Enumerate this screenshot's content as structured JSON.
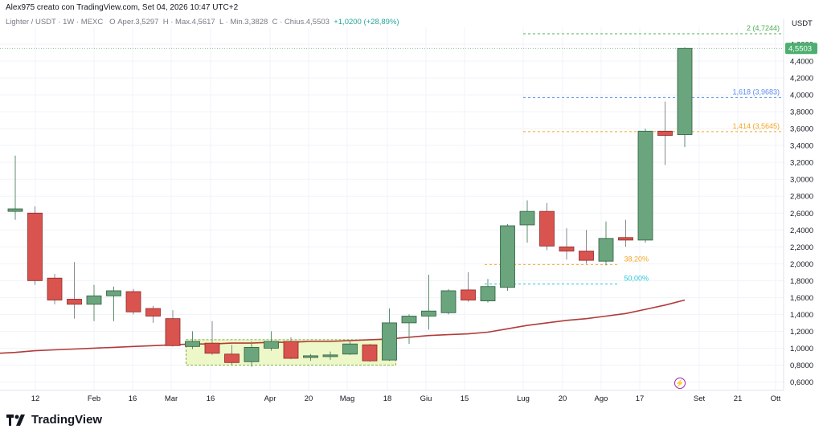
{
  "header": {
    "author_line": "Alex975 creato con TradingView.com, Set 04, 2026 10:47 UTC+2",
    "symbol": "Lighter / USDT · 1W · MEXC",
    "o_label": "O",
    "open": "Aper.3,5297",
    "high": "H · Max.4,5617",
    "low": "L · Min.3,3828",
    "close": "C · Chius.4,5503",
    "change": "+1,0200 (+28,89%)"
  },
  "axis_unit": "USDT",
  "footer": {
    "brand": "TradingView"
  },
  "colors": {
    "up": "#6aa57e",
    "down": "#d9534f",
    "ma": "#b23a3a",
    "fib_blue": "#5b8def",
    "fib_orange": "#f5a623",
    "fib_green": "#4caf50",
    "fib_teal": "#26c6da"
  },
  "chart_data": {
    "type": "candlestick",
    "ylim": [
      0.5,
      4.8
    ],
    "y_ticks": [
      "0,6000",
      "0,8000",
      "1,0000",
      "1,2000",
      "1,4000",
      "1,6000",
      "1,8000",
      "2,0000",
      "2,2000",
      "2,4000",
      "2,6000",
      "2,8000",
      "3,0000",
      "3,2000",
      "3,4000",
      "3,6000",
      "3,8000",
      "4,0000",
      "4,2000",
      "4,4000",
      "4,6000"
    ],
    "x_labels": [
      "12",
      "Feb",
      "16",
      "Mar",
      "16",
      "Apr",
      "20",
      "Mag",
      "18",
      "Giu",
      "15",
      "Lug",
      "20",
      "Ago",
      "17",
      "Set",
      "21",
      "Ott"
    ],
    "last_price": "4,5503",
    "candles": [
      {
        "o": 2.62,
        "h": 3.28,
        "l": 2.52,
        "c": 2.65
      },
      {
        "o": 2.6,
        "h": 2.68,
        "l": 1.75,
        "c": 1.8
      },
      {
        "o": 1.83,
        "h": 1.88,
        "l": 1.52,
        "c": 1.57
      },
      {
        "o": 1.58,
        "h": 2.02,
        "l": 1.35,
        "c": 1.52
      },
      {
        "o": 1.52,
        "h": 1.75,
        "l": 1.32,
        "c": 1.62
      },
      {
        "o": 1.62,
        "h": 1.73,
        "l": 1.32,
        "c": 1.68
      },
      {
        "o": 1.67,
        "h": 1.7,
        "l": 1.4,
        "c": 1.43
      },
      {
        "o": 1.47,
        "h": 1.5,
        "l": 1.3,
        "c": 1.38
      },
      {
        "o": 1.35,
        "h": 1.45,
        "l": 1.02,
        "c": 1.03
      },
      {
        "o": 1.02,
        "h": 1.2,
        "l": 0.99,
        "c": 1.08
      },
      {
        "o": 1.06,
        "h": 1.32,
        "l": 0.92,
        "c": 0.94
      },
      {
        "o": 0.93,
        "h": 1.04,
        "l": 0.8,
        "c": 0.83
      },
      {
        "o": 0.84,
        "h": 1.08,
        "l": 0.78,
        "c": 1.01
      },
      {
        "o": 1.0,
        "h": 1.2,
        "l": 0.97,
        "c": 1.08
      },
      {
        "o": 1.08,
        "h": 1.13,
        "l": 0.87,
        "c": 0.88
      },
      {
        "o": 0.89,
        "h": 0.93,
        "l": 0.85,
        "c": 0.91
      },
      {
        "o": 0.9,
        "h": 0.96,
        "l": 0.86,
        "c": 0.92
      },
      {
        "o": 0.93,
        "h": 1.08,
        "l": 0.92,
        "c": 1.05
      },
      {
        "o": 1.04,
        "h": 1.05,
        "l": 0.84,
        "c": 0.85
      },
      {
        "o": 0.86,
        "h": 1.47,
        "l": 0.85,
        "c": 1.3
      },
      {
        "o": 1.3,
        "h": 1.4,
        "l": 1.05,
        "c": 1.38
      },
      {
        "o": 1.38,
        "h": 1.87,
        "l": 1.22,
        "c": 1.44
      },
      {
        "o": 1.42,
        "h": 1.7,
        "l": 1.4,
        "c": 1.68
      },
      {
        "o": 1.69,
        "h": 1.9,
        "l": 1.55,
        "c": 1.57
      },
      {
        "o": 1.56,
        "h": 1.82,
        "l": 1.54,
        "c": 1.73
      },
      {
        "o": 1.72,
        "h": 2.47,
        "l": 1.68,
        "c": 2.45
      },
      {
        "o": 2.46,
        "h": 2.75,
        "l": 2.25,
        "c": 2.62
      },
      {
        "o": 2.62,
        "h": 2.72,
        "l": 2.16,
        "c": 2.21
      },
      {
        "o": 2.2,
        "h": 2.42,
        "l": 2.05,
        "c": 2.15
      },
      {
        "o": 2.15,
        "h": 2.4,
        "l": 2.0,
        "c": 2.04
      },
      {
        "o": 2.03,
        "h": 2.5,
        "l": 1.98,
        "c": 2.3
      },
      {
        "o": 2.31,
        "h": 2.52,
        "l": 2.2,
        "c": 2.28
      },
      {
        "o": 2.28,
        "h": 3.6,
        "l": 2.25,
        "c": 3.57
      },
      {
        "o": 3.57,
        "h": 3.92,
        "l": 3.17,
        "c": 3.52
      },
      {
        "o": 3.5297,
        "h": 4.5617,
        "l": 3.3828,
        "c": 4.5503
      }
    ],
    "moving_average": [
      0.95,
      0.97,
      0.98,
      0.99,
      1.0,
      1.01,
      1.02,
      1.03,
      1.04,
      1.05,
      1.05,
      1.06,
      1.06,
      1.07,
      1.07,
      1.08,
      1.08,
      1.09,
      1.1,
      1.11,
      1.13,
      1.15,
      1.16,
      1.17,
      1.19,
      1.23,
      1.27,
      1.3,
      1.33,
      1.35,
      1.38,
      1.41,
      1.46,
      1.51,
      1.57
    ],
    "fib_levels": [
      {
        "label": "2 (4,7244)",
        "value": 4.7244,
        "color": "#4caf50"
      },
      {
        "label": "1,618 (3,9683)",
        "value": 3.9683,
        "color": "#5b8def"
      },
      {
        "label": "1,414 (3,5645)",
        "value": 3.5645,
        "color": "#f5a623"
      },
      {
        "label": "38,20%",
        "value": 1.99,
        "color": "#f5a623"
      },
      {
        "label": "50,00%",
        "value": 1.76,
        "color": "#26c6da"
      }
    ]
  }
}
